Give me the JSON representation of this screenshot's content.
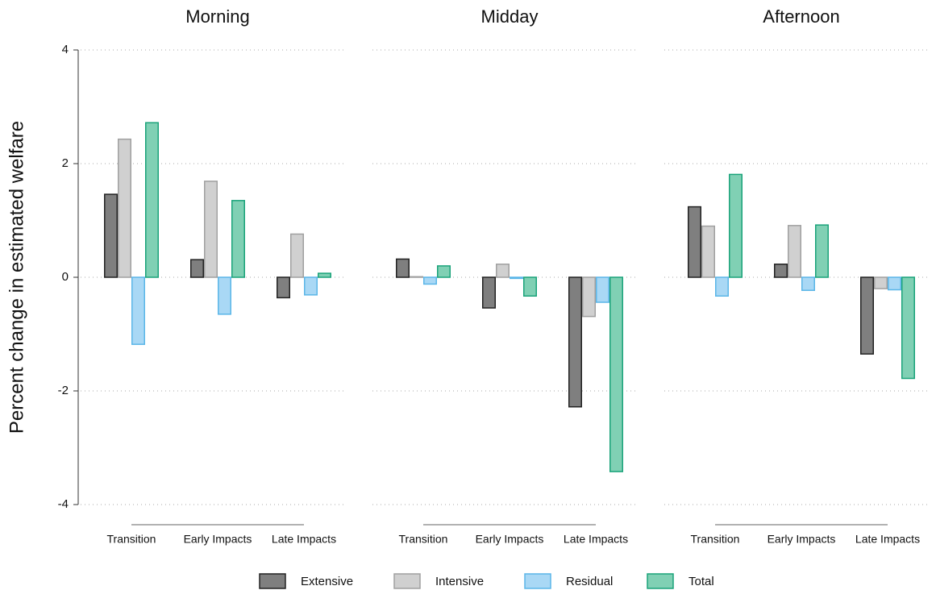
{
  "chart_data": [
    {
      "type": "bar",
      "title": "Morning",
      "ylabel": "Percent change in estimated welfare",
      "categories": [
        "Transition",
        "Early Impacts",
        "Late Impacts"
      ],
      "series": [
        {
          "name": "Extensive",
          "color": "#7f7f7f",
          "edgecolor": "#222222",
          "values": [
            1.46,
            0.31,
            -0.36
          ]
        },
        {
          "name": "Intensive",
          "color": "#d0d0d0",
          "edgecolor": "#a0a0a0",
          "values": [
            2.43,
            1.69,
            0.76
          ]
        },
        {
          "name": "Residual",
          "color": "#a9d8f5",
          "edgecolor": "#5bb6e8",
          "values": [
            -1.18,
            -0.65,
            -0.31
          ]
        },
        {
          "name": "Total",
          "color": "#80d0b4",
          "edgecolor": "#1aa37a",
          "values": [
            2.72,
            1.35,
            0.07
          ]
        }
      ],
      "ylim": [
        -4,
        4
      ],
      "yticks": [
        4,
        2,
        0,
        -2,
        -4
      ],
      "grid": true
    },
    {
      "type": "bar",
      "title": "Midday",
      "categories": [
        "Transition",
        "Early Impacts",
        "Late Impacts"
      ],
      "series": [
        {
          "name": "Extensive",
          "color": "#7f7f7f",
          "edgecolor": "#222222",
          "values": [
            0.32,
            -0.54,
            -2.28
          ]
        },
        {
          "name": "Intensive",
          "color": "#d0d0d0",
          "edgecolor": "#a0a0a0",
          "values": [
            0.01,
            0.23,
            -0.69
          ]
        },
        {
          "name": "Residual",
          "color": "#a9d8f5",
          "edgecolor": "#5bb6e8",
          "values": [
            -0.12,
            -0.02,
            -0.44
          ]
        },
        {
          "name": "Total",
          "color": "#80d0b4",
          "edgecolor": "#1aa37a",
          "values": [
            0.2,
            -0.33,
            -3.42
          ]
        }
      ],
      "ylim": [
        -4,
        4
      ],
      "grid": true
    },
    {
      "type": "bar",
      "title": "Afternoon",
      "categories": [
        "Transition",
        "Early Impacts",
        "Late Impacts"
      ],
      "series": [
        {
          "name": "Extensive",
          "color": "#7f7f7f",
          "edgecolor": "#222222",
          "values": [
            1.24,
            0.23,
            -1.35
          ]
        },
        {
          "name": "Intensive",
          "color": "#d0d0d0",
          "edgecolor": "#a0a0a0",
          "values": [
            0.9,
            0.91,
            -0.2
          ]
        },
        {
          "name": "Residual",
          "color": "#a9d8f5",
          "edgecolor": "#5bb6e8",
          "values": [
            -0.33,
            -0.23,
            -0.22
          ]
        },
        {
          "name": "Total",
          "color": "#80d0b4",
          "edgecolor": "#1aa37a",
          "values": [
            1.81,
            0.92,
            -1.78
          ]
        }
      ],
      "ylim": [
        -4,
        4
      ],
      "grid": true
    }
  ]
}
